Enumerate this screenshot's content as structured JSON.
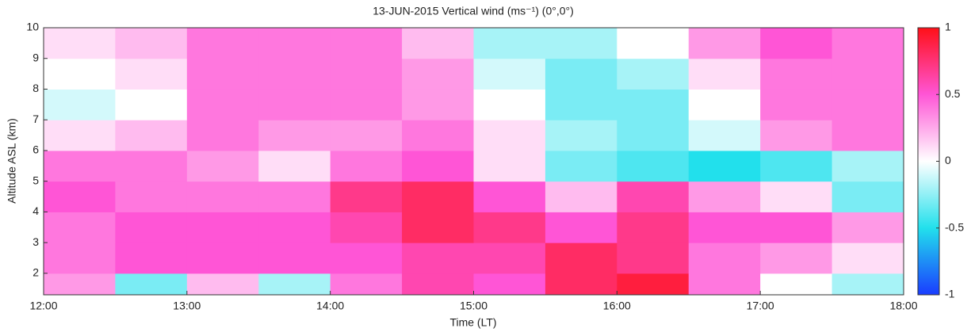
{
  "chart_data": {
    "type": "heatmap",
    "title": "13-JUN-2015 Vertical wind (ms⁻¹) (0°,0°)",
    "xlabel": "Time (LT)",
    "ylabel": "Altitude ASL (km)",
    "xbins": [
      12,
      12.5,
      13,
      13.5,
      14,
      14.5,
      15,
      15.5,
      16,
      16.5,
      17,
      17.5,
      18
    ],
    "ybins": [
      1.3,
      2,
      3,
      4,
      5,
      6,
      7,
      8,
      9,
      10
    ],
    "values": [
      [
        0.3,
        -0.3,
        0.2,
        -0.2,
        0.4,
        0.6,
        0.5,
        0.8,
        0.9,
        0.4,
        0,
        -0.2
      ],
      [
        0.4,
        0.5,
        0.5,
        0.5,
        0.5,
        0.6,
        0.6,
        0.8,
        0.7,
        0.4,
        0.3,
        0.1
      ],
      [
        0.4,
        0.5,
        0.5,
        0.5,
        0.6,
        0.8,
        0.7,
        0.5,
        0.7,
        0.5,
        0.5,
        0.3
      ],
      [
        0.5,
        0.4,
        0.4,
        0.4,
        0.7,
        0.8,
        0.5,
        0.2,
        0.6,
        0.3,
        0.1,
        -0.3
      ],
      [
        0.4,
        0.4,
        0.3,
        0.1,
        0.4,
        0.5,
        0.1,
        -0.3,
        -0.4,
        -0.5,
        -0.4,
        -0.2
      ],
      [
        0.1,
        0.2,
        0.4,
        0.3,
        0.3,
        0.4,
        0.1,
        -0.2,
        -0.3,
        -0.1,
        0.3,
        0.4
      ],
      [
        -0.1,
        0,
        0.4,
        0.4,
        0.4,
        0.3,
        0,
        -0.3,
        -0.3,
        0,
        0.4,
        0.4
      ],
      [
        0,
        0.1,
        0.4,
        0.4,
        0.4,
        0.3,
        -0.1,
        -0.3,
        -0.2,
        0.1,
        0.4,
        0.4
      ],
      [
        0.1,
        0.2,
        0.4,
        0.4,
        0.4,
        0.2,
        -0.2,
        -0.2,
        0,
        0.3,
        0.5,
        0.4
      ]
    ],
    "xlim": [
      12,
      18
    ],
    "xticks": [
      {
        "value": 12,
        "label": "12:00"
      },
      {
        "value": 13,
        "label": "13:00"
      },
      {
        "value": 14,
        "label": "14:00"
      },
      {
        "value": 15,
        "label": "15:00"
      },
      {
        "value": 16,
        "label": "16:00"
      },
      {
        "value": 17,
        "label": "17:00"
      },
      {
        "value": 18,
        "label": "18:00"
      }
    ],
    "ylim": [
      1.3,
      10
    ],
    "yticks": [
      2,
      3,
      4,
      5,
      6,
      7,
      8,
      9,
      10
    ],
    "clim": [
      -1,
      1
    ],
    "cticks": [
      -1,
      -0.5,
      0,
      0.5,
      1
    ],
    "colormap": [
      "#1a3cff",
      "#22e0ec",
      "#ffffff",
      "#ff55d6",
      "#ff1018"
    ]
  }
}
